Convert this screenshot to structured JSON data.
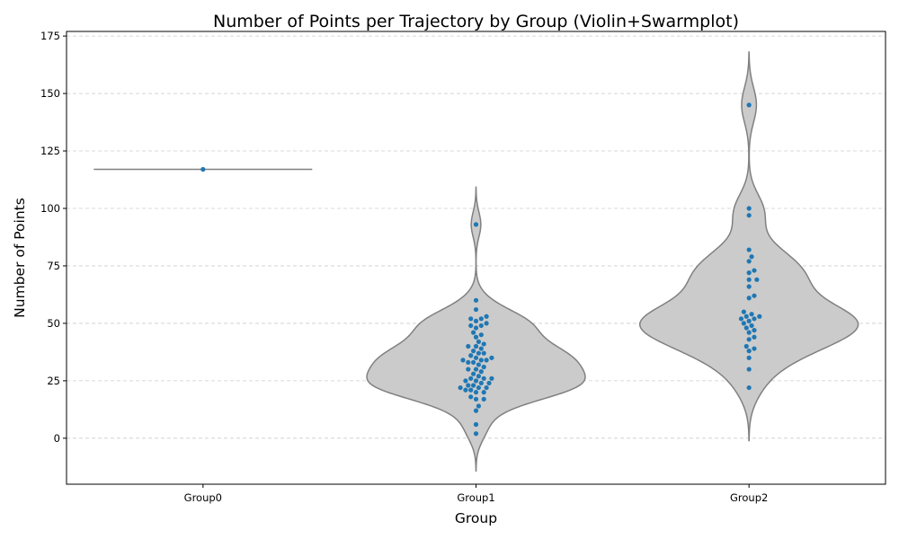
{
  "chart_data": {
    "type": "violin",
    "title": "Number of Points per Trajectory by Group (Violin+Swarmplot)",
    "xlabel": "Group",
    "ylabel": "Number of Points",
    "categories": [
      "Group0",
      "Group1",
      "Group2"
    ],
    "ylim": [
      -20,
      177
    ],
    "yticks": [
      0,
      25,
      50,
      75,
      100,
      125,
      150,
      175
    ],
    "grid": "horizontal-dashed",
    "violin_color": "#cbcbcb",
    "violin_edge_color": "#808080",
    "point_color": "#1f77b4",
    "series": [
      {
        "category": "Group0",
        "points": [
          117
        ]
      },
      {
        "category": "Group1",
        "points": [
          2,
          6,
          12,
          14,
          17,
          17,
          18,
          20,
          20,
          21,
          21,
          22,
          22,
          22,
          23,
          23,
          24,
          24,
          25,
          25,
          26,
          26,
          26,
          27,
          28,
          29,
          30,
          30,
          31,
          32,
          33,
          33,
          34,
          34,
          34,
          35,
          35,
          36,
          37,
          37,
          38,
          39,
          40,
          40,
          41,
          42,
          44,
          45,
          46,
          48,
          49,
          49,
          50,
          51,
          52,
          52,
          53,
          56,
          60,
          93
        ]
      },
      {
        "category": "Group2",
        "points": [
          22,
          30,
          35,
          38,
          39,
          40,
          43,
          44,
          46,
          47,
          48,
          49,
          50,
          51,
          52,
          52,
          53,
          53,
          54,
          55,
          61,
          62,
          66,
          69,
          69,
          72,
          73,
          77,
          79,
          82,
          97,
          100,
          145
        ]
      }
    ]
  }
}
